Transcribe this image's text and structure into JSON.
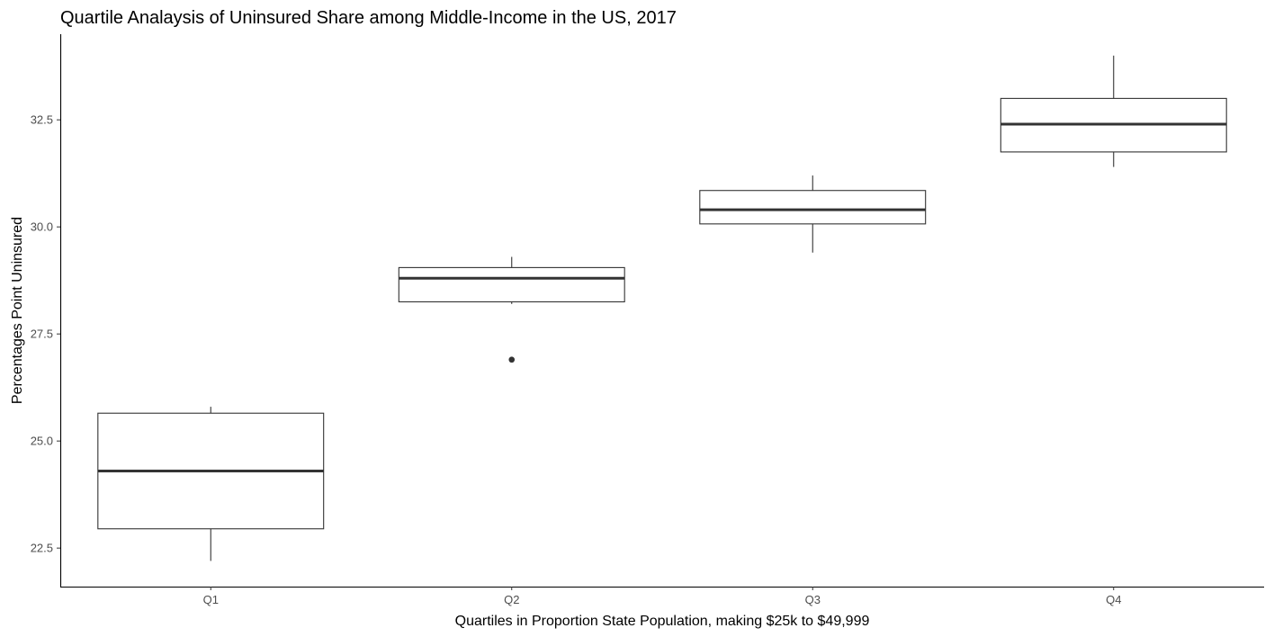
{
  "chart_data": {
    "type": "box",
    "title": "Quartile Analaysis of Uninsured Share among Middle-Income in the US, 2017",
    "xlabel": "Quartiles in Proportion State Population, making $25k to $49,999",
    "ylabel": "Percentages Point Uninsured",
    "categories": [
      "Q1",
      "Q2",
      "Q3",
      "Q4"
    ],
    "boxes": [
      {
        "category": "Q1",
        "lower_whisker": 22.2,
        "q1": 22.95,
        "median": 24.3,
        "q3": 25.65,
        "upper_whisker": 25.8,
        "outliers": []
      },
      {
        "category": "Q2",
        "lower_whisker": 28.2,
        "q1": 28.25,
        "median": 28.8,
        "q3": 29.05,
        "upper_whisker": 29.3,
        "outliers": [
          26.9
        ]
      },
      {
        "category": "Q3",
        "lower_whisker": 29.4,
        "q1": 30.07,
        "median": 30.4,
        "q3": 30.85,
        "upper_whisker": 31.2,
        "outliers": []
      },
      {
        "category": "Q4",
        "lower_whisker": 31.4,
        "q1": 31.75,
        "median": 32.4,
        "q3": 33.0,
        "upper_whisker": 34.0,
        "outliers": []
      }
    ],
    "yticks": [
      22.5,
      25.0,
      27.5,
      30.0,
      32.5
    ],
    "ytick_labels": [
      "22.5",
      "25.0",
      "27.5",
      "30.0",
      "32.5"
    ],
    "ylim": [
      21.6,
      34.5
    ],
    "grid": false,
    "legend": "none"
  }
}
